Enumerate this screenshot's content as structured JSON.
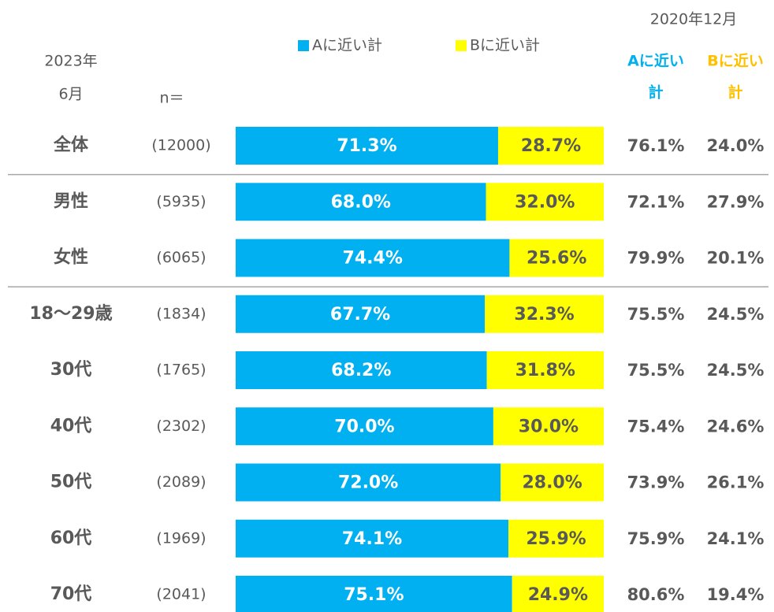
{
  "chart_data": {
    "type": "bar",
    "orientation": "horizontal",
    "stacked": true,
    "period_lines": [
      "2023年",
      "6月"
    ],
    "n_header": "n＝",
    "categories": [
      "全体",
      "男性",
      "女性",
      "18〜29歳",
      "30代",
      "40代",
      "50代",
      "60代",
      "70代"
    ],
    "n_labels": [
      "(12000)",
      "(5935)",
      "(6065)",
      "(1834)",
      "(1765)",
      "(2302)",
      "(2089)",
      "(1969)",
      "(2041)"
    ],
    "xlim": [
      0,
      100
    ],
    "series": [
      {
        "name": "Aに近い計",
        "color": "#00b0f0",
        "label_color": "#ffffff",
        "values": [
          71.3,
          68.0,
          74.4,
          67.7,
          68.2,
          70.0,
          72.0,
          74.1,
          75.1
        ],
        "value_labels": [
          "71.3%",
          "68.0%",
          "74.4%",
          "67.7%",
          "68.2%",
          "70.0%",
          "72.0%",
          "74.1%",
          "75.1%"
        ]
      },
      {
        "name": "Bに近い計",
        "color": "#ffff00",
        "label_color": "#595959",
        "values": [
          28.7,
          32.0,
          25.6,
          32.3,
          31.8,
          30.0,
          28.0,
          25.9,
          24.9
        ],
        "value_labels": [
          "28.7%",
          "32.0%",
          "25.6%",
          "32.3%",
          "31.8%",
          "30.0%",
          "28.0%",
          "25.9%",
          "24.9%"
        ]
      }
    ],
    "comparison": {
      "title": "2020年12月",
      "columns": [
        {
          "header_lines": [
            "Aに近い",
            "計"
          ],
          "color": "#00b0f0",
          "values": [
            "76.1%",
            "72.1%",
            "79.9%",
            "75.5%",
            "75.5%",
            "75.4%",
            "73.9%",
            "75.9%",
            "80.6%"
          ]
        },
        {
          "header_lines": [
            "Bに近い",
            "計"
          ],
          "color": "#ffc000",
          "values": [
            "24.0%",
            "27.9%",
            "20.1%",
            "24.5%",
            "24.5%",
            "24.6%",
            "26.1%",
            "24.1%",
            "19.4%"
          ]
        }
      ]
    }
  }
}
